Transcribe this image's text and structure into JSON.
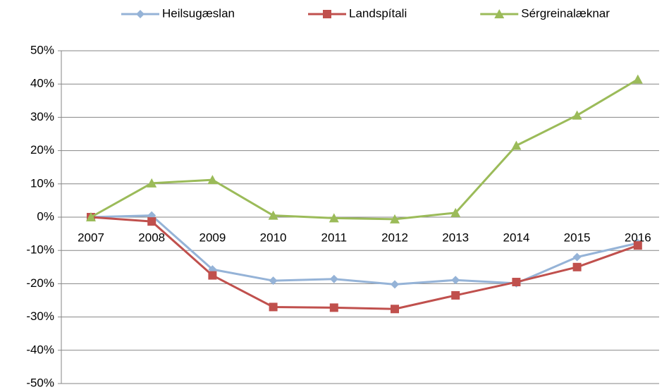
{
  "chart_data": {
    "type": "line",
    "categories": [
      "2007",
      "2008",
      "2009",
      "2010",
      "2011",
      "2012",
      "2013",
      "2014",
      "2015",
      "2016"
    ],
    "series": [
      {
        "name": "Heilsugæslan",
        "color": "#95b3d7",
        "marker": "diamond",
        "values": [
          0,
          0.5,
          -15.7,
          -19.1,
          -18.6,
          -20.2,
          -18.9,
          -19.9,
          -12,
          -7.8
        ]
      },
      {
        "name": "Landspítali",
        "color": "#c0504d",
        "marker": "square",
        "values": [
          0,
          -1.3,
          -17.5,
          -27,
          -27.2,
          -27.6,
          -23.5,
          -19.5,
          -15,
          -8.5
        ]
      },
      {
        "name": "Sérgreinalæknar",
        "color": "#9bbb59",
        "marker": "triangle",
        "values": [
          0,
          10.2,
          11.2,
          0.5,
          -0.3,
          -0.6,
          1.3,
          21.5,
          30.6,
          41.4
        ]
      }
    ],
    "ylim": [
      -50,
      50
    ],
    "yticks": [
      {
        "value": -50,
        "label": "-50%"
      },
      {
        "value": -40,
        "label": "-40%"
      },
      {
        "value": -30,
        "label": "-30%"
      },
      {
        "value": -20,
        "label": "-20%"
      },
      {
        "value": -10,
        "label": "-10%"
      },
      {
        "value": 0,
        "label": "0%"
      },
      {
        "value": 10,
        "label": "10%"
      },
      {
        "value": 20,
        "label": "20%"
      },
      {
        "value": 30,
        "label": "30%"
      },
      {
        "value": 40,
        "label": "40%"
      },
      {
        "value": 50,
        "label": "50%"
      }
    ],
    "grid": true,
    "legend": "top"
  }
}
